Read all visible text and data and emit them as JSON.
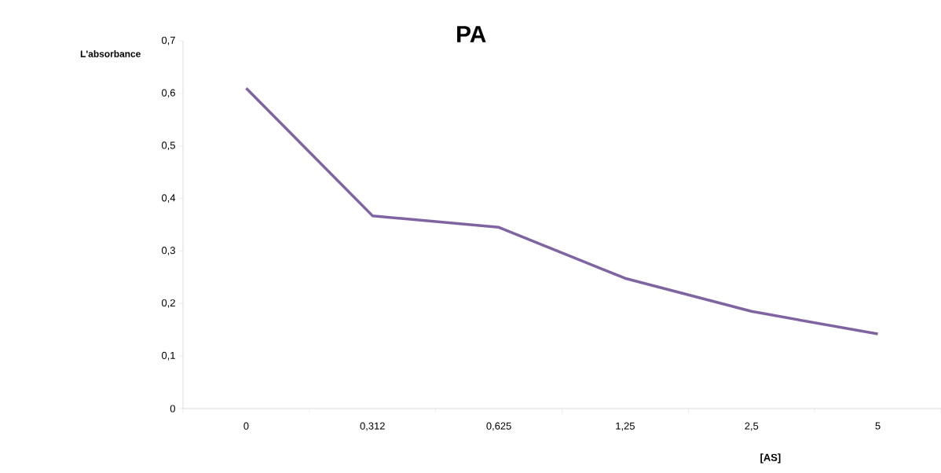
{
  "chart_data": {
    "type": "line",
    "title": "PA",
    "xlabel": "[AS]",
    "ylabel": "L'absorbance",
    "categories": [
      "0",
      "0,312",
      "0,625",
      "1,25",
      "2,5",
      "5"
    ],
    "series": [
      {
        "color": "#8064a2",
        "values": [
          0.61,
          0.367,
          0.345,
          0.248,
          0.185,
          0.142
        ]
      }
    ],
    "ylim": [
      0,
      0.7
    ],
    "yticks": [
      0,
      {
        "value": 0.1,
        "label": "0,1"
      },
      {
        "value": 0.2,
        "label": "0,2"
      },
      {
        "value": 0.3,
        "label": "0,3"
      },
      {
        "value": 0.4,
        "label": "0,4"
      },
      {
        "value": 0.5,
        "label": "0,5"
      },
      {
        "value": 0.6,
        "label": "0,6"
      },
      {
        "value": 0.7,
        "label": "0,7"
      }
    ],
    "grid": false,
    "marker": "none",
    "line_style": "solid"
  }
}
